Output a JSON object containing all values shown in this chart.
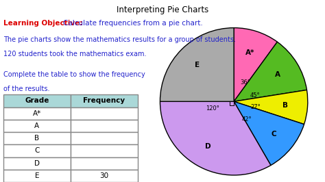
{
  "title": "Interpreting Pie Charts",
  "learning_objective_label": "Learning Objective: ",
  "learning_objective_text": "Calculate frequencies from a pie chart.",
  "description_line1": "The pie charts show the mathematics results for a group of students.",
  "description_line2": "120 students took the mathematics exam.",
  "instruction_line1": "Complete the table to show the frequency",
  "instruction_line2": "of the results.",
  "grades": [
    "A*",
    "A",
    "B",
    "C",
    "D",
    "E"
  ],
  "angles": [
    36,
    45,
    27,
    42,
    120,
    90
  ],
  "colors": [
    "#FF69B4",
    "#55BB22",
    "#EEEE00",
    "#3399FF",
    "#CC99EE",
    "#AAAAAA"
  ],
  "table_grades": [
    "A*",
    "A",
    "B",
    "C",
    "D",
    "E"
  ],
  "table_frequencies": [
    "",
    "",
    "",
    "",
    "",
    "30"
  ],
  "angle_labels": [
    "36°",
    "45°",
    "27°",
    "42°",
    "120°",
    ""
  ],
  "background_color": "#FFFFFF",
  "text_blue": "#2222CC",
  "text_red": "#DD0000",
  "header_color": "#AAD8D8"
}
